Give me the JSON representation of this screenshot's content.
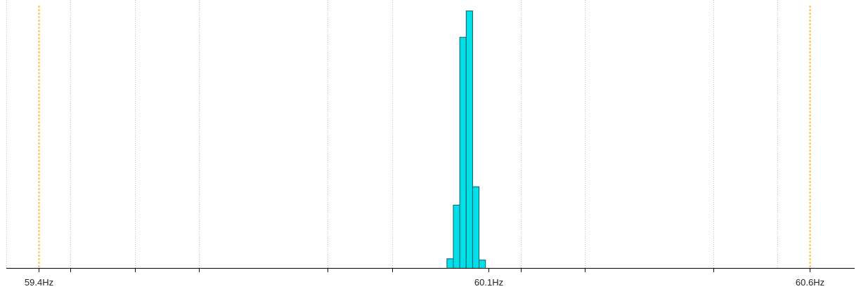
{
  "chart_data": {
    "type": "bar",
    "title": "",
    "xlabel": "",
    "ylabel": "",
    "x_unit": "Hz",
    "xlim": [
      59.35,
      60.67
    ],
    "ylim": [
      0,
      100
    ],
    "grid": "vertical dotted",
    "legend": "none",
    "tick_labels": [
      {
        "value": 59.4,
        "text": "59.4Hz"
      },
      {
        "value": 60.1,
        "text": "60.1Hz"
      },
      {
        "value": 60.6,
        "text": "60.6Hz"
      }
    ],
    "minor_ticks": [
      59.45,
      59.55,
      59.65,
      59.85,
      59.95,
      60.15,
      60.25,
      60.45
    ],
    "gridlines": [
      59.35,
      59.45,
      59.55,
      59.65,
      59.85,
      59.95,
      60.15,
      60.25,
      60.45,
      60.55
    ],
    "limit_lines": [
      59.4,
      60.6
    ],
    "bin_width": 0.01,
    "bins": [
      {
        "start": 60.035,
        "value": 3.7
      },
      {
        "start": 60.045,
        "value": 24.5
      },
      {
        "start": 60.055,
        "value": 89.5
      },
      {
        "start": 60.065,
        "value": 99.7
      },
      {
        "start": 60.075,
        "value": 31.6
      },
      {
        "start": 60.085,
        "value": 3.2
      }
    ],
    "colors": {
      "bar_fill": "#00E0E8",
      "bar_stroke": "#0E5C66",
      "limit_line": "#FFBF40",
      "grid": "#BDBDBD",
      "axis": "#000000"
    }
  }
}
